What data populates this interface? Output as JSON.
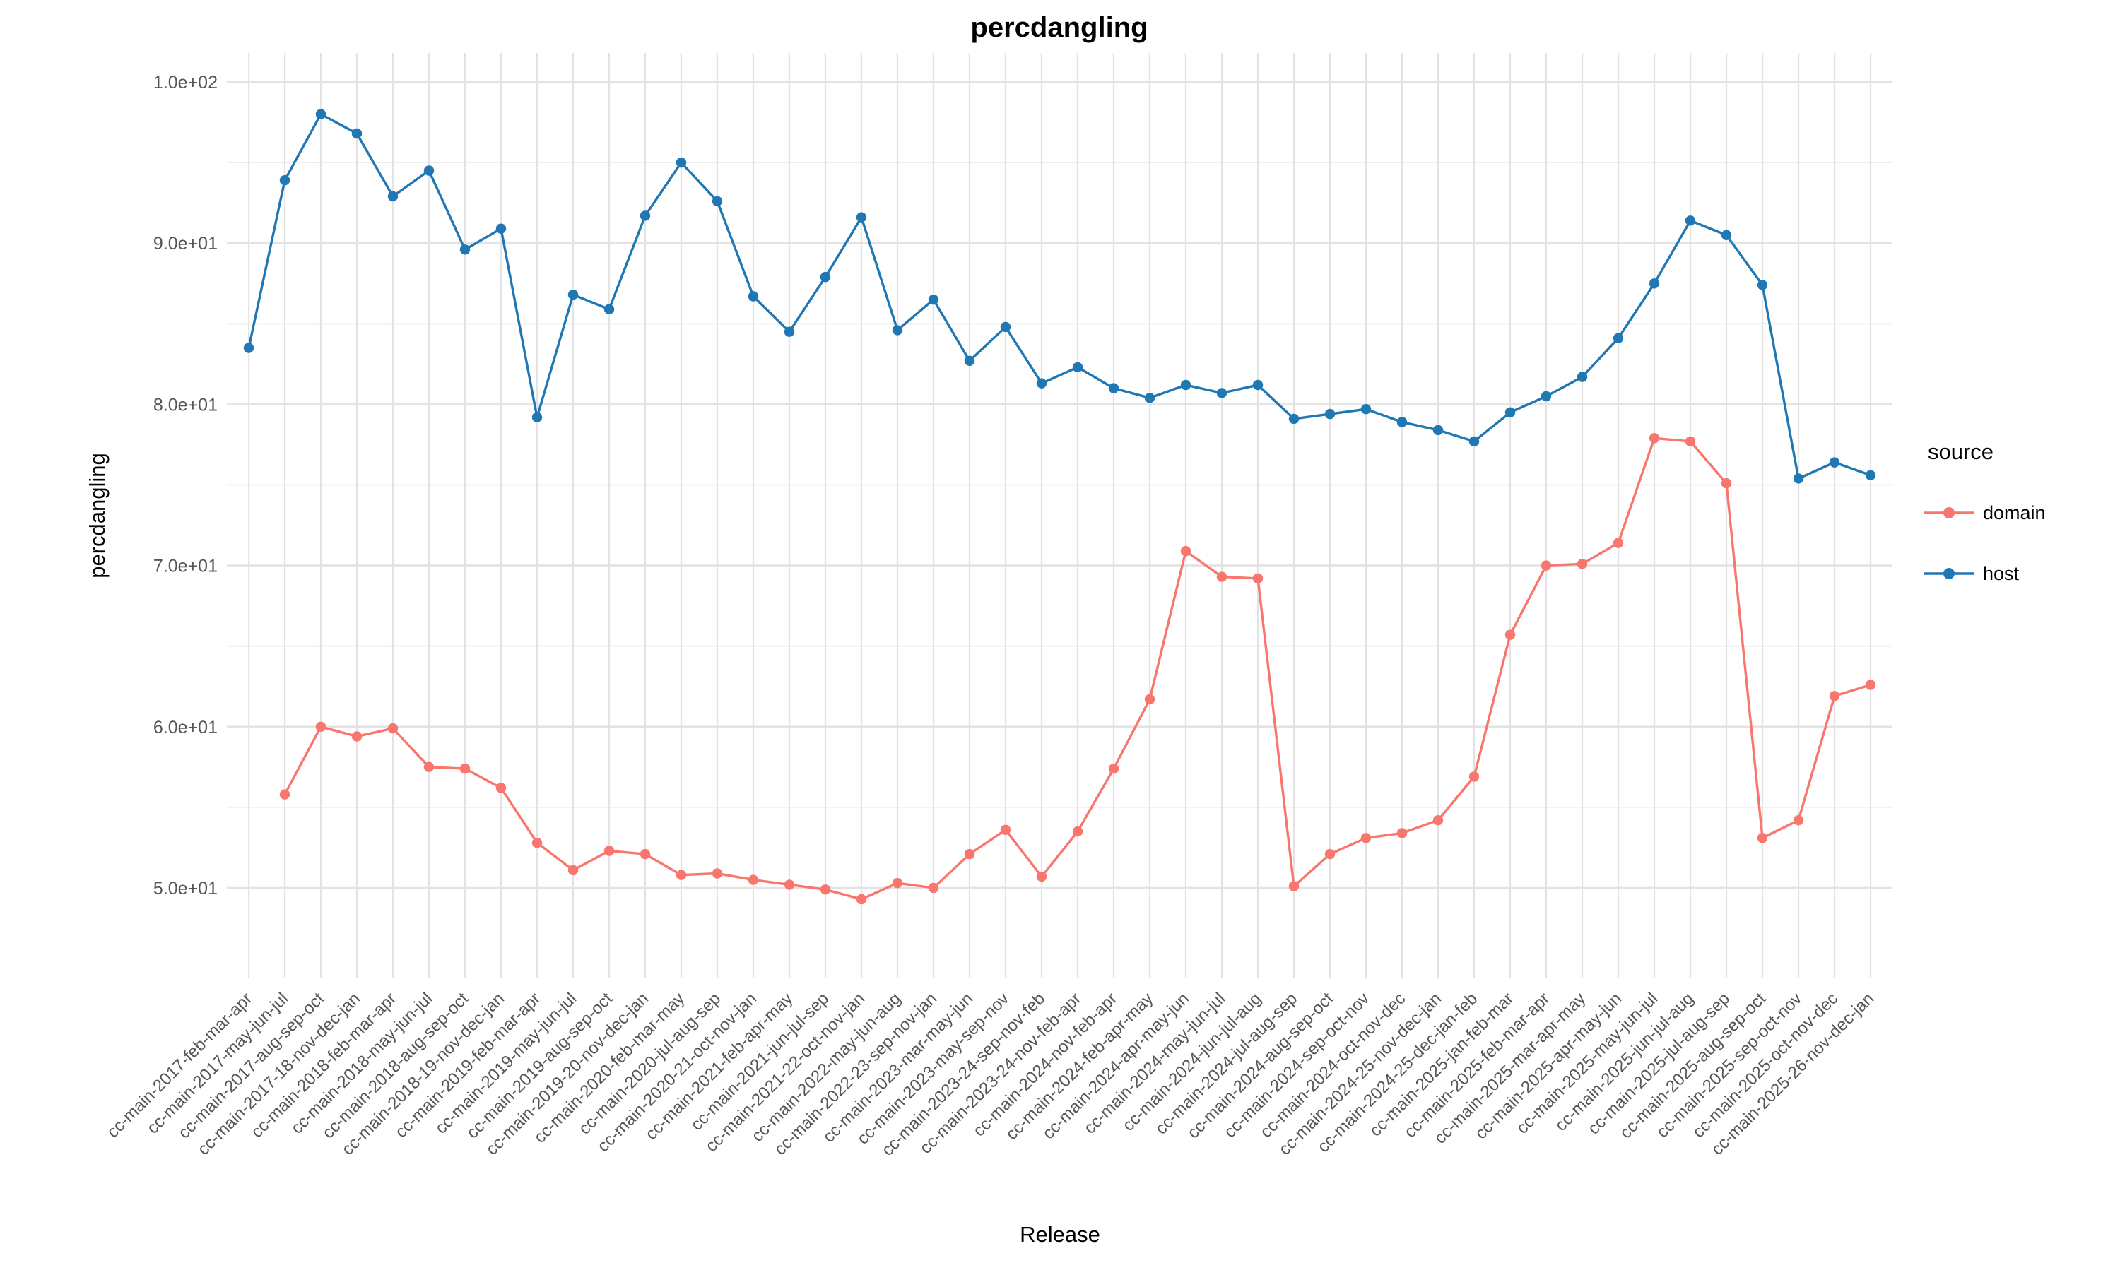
{
  "title": "percdangling",
  "axes": {
    "x_title": "Release",
    "y_title": "percdangling"
  },
  "legend": {
    "title": "source",
    "entries": [
      {
        "label": "domain",
        "color": "#F8766D"
      },
      {
        "label": "host",
        "color": "#1F77B4"
      }
    ]
  },
  "colors": {
    "domain": "#F8766D",
    "host": "#1F77B4",
    "grid_major": "#E3E3E3",
    "grid_minor": "#EDEDED",
    "tick_text": "#555555"
  },
  "y_ticks": [
    {
      "value": 100,
      "label": "1.0e+02"
    },
    {
      "value": 90,
      "label": "9.0e+01"
    },
    {
      "value": 80,
      "label": "8.0e+01"
    },
    {
      "value": 70,
      "label": "7.0e+01"
    },
    {
      "value": 60,
      "label": "6.0e+01"
    },
    {
      "value": 50,
      "label": "5.0e+01"
    }
  ],
  "chart_data": {
    "type": "line",
    "title": "percdangling",
    "xlabel": "Release",
    "ylabel": "percdangling",
    "ylim": [
      44,
      102
    ],
    "grid": true,
    "legend_position": "right",
    "categories": [
      "cc-main-2017-feb-mar-apr",
      "cc-main-2017-may-jun-jul",
      "cc-main-2017-aug-sep-oct",
      "cc-main-2017-18-nov-dec-jan",
      "cc-main-2018-feb-mar-apr",
      "cc-main-2018-may-jun-jul",
      "cc-main-2018-aug-sep-oct",
      "cc-main-2018-19-nov-dec-jan",
      "cc-main-2019-feb-mar-apr",
      "cc-main-2019-may-jun-jul",
      "cc-main-2019-aug-sep-oct",
      "cc-main-2019-20-nov-dec-jan",
      "cc-main-2020-feb-mar-may",
      "cc-main-2020-jul-aug-sep",
      "cc-main-2020-21-oct-nov-jan",
      "cc-main-2021-feb-apr-may",
      "cc-main-2021-jun-jul-sep",
      "cc-main-2021-22-oct-nov-jan",
      "cc-main-2022-may-jun-aug",
      "cc-main-2022-23-sep-nov-jan",
      "cc-main-2023-mar-may-jun",
      "cc-main-2023-may-sep-nov",
      "cc-main-2023-24-sep-nov-feb",
      "cc-main-2023-24-nov-feb-apr",
      "cc-main-2024-nov-feb-apr",
      "cc-main-2024-feb-apr-may",
      "cc-main-2024-apr-may-jun",
      "cc-main-2024-may-jun-jul",
      "cc-main-2024-jun-jul-aug",
      "cc-main-2024-jul-aug-sep",
      "cc-main-2024-aug-sep-oct",
      "cc-main-2024-sep-oct-nov",
      "cc-main-2024-oct-nov-dec",
      "cc-main-2024-25-nov-dec-jan",
      "cc-main-2024-25-dec-jan-feb",
      "cc-main-2025-jan-feb-mar",
      "cc-main-2025-feb-mar-apr",
      "cc-main-2025-mar-apr-may",
      "cc-main-2025-apr-may-jun",
      "cc-main-2025-may-jun-jul",
      "cc-main-2025-jun-jul-aug",
      "cc-main-2025-jul-aug-sep",
      "cc-main-2025-aug-sep-oct",
      "cc-main-2025-sep-oct-nov",
      "cc-main-2025-oct-nov-dec",
      "cc-main-2025-26-nov-dec-jan"
    ],
    "series": [
      {
        "name": "domain",
        "color": "#F8766D",
        "values": [
          null,
          55.8,
          60.0,
          59.4,
          59.9,
          57.5,
          57.4,
          56.2,
          52.8,
          51.1,
          52.3,
          52.1,
          50.8,
          50.9,
          50.5,
          50.2,
          49.9,
          49.3,
          50.3,
          50.0,
          52.1,
          53.6,
          50.7,
          53.5,
          57.4,
          61.7,
          70.9,
          69.3,
          69.2,
          50.1,
          52.1,
          53.1,
          53.4,
          54.2,
          56.9,
          65.7,
          70.0,
          70.1,
          71.4,
          77.9,
          77.7,
          75.1,
          53.1,
          54.2,
          61.9,
          62.6
        ]
      },
      {
        "name": "host",
        "color": "#1F77B4",
        "values": [
          83.5,
          93.9,
          98.0,
          96.8,
          92.9,
          94.5,
          89.6,
          90.9,
          79.2,
          86.8,
          85.9,
          91.7,
          95.0,
          92.6,
          86.7,
          84.5,
          87.9,
          91.6,
          84.6,
          86.5,
          82.7,
          84.8,
          81.3,
          82.3,
          81.0,
          80.4,
          81.2,
          80.7,
          81.2,
          79.1,
          79.4,
          79.7,
          78.9,
          78.4,
          77.7,
          79.5,
          80.5,
          81.7,
          84.1,
          87.5,
          91.4,
          90.5,
          87.4,
          75.4,
          76.4,
          75.6
        ]
      }
    ]
  }
}
